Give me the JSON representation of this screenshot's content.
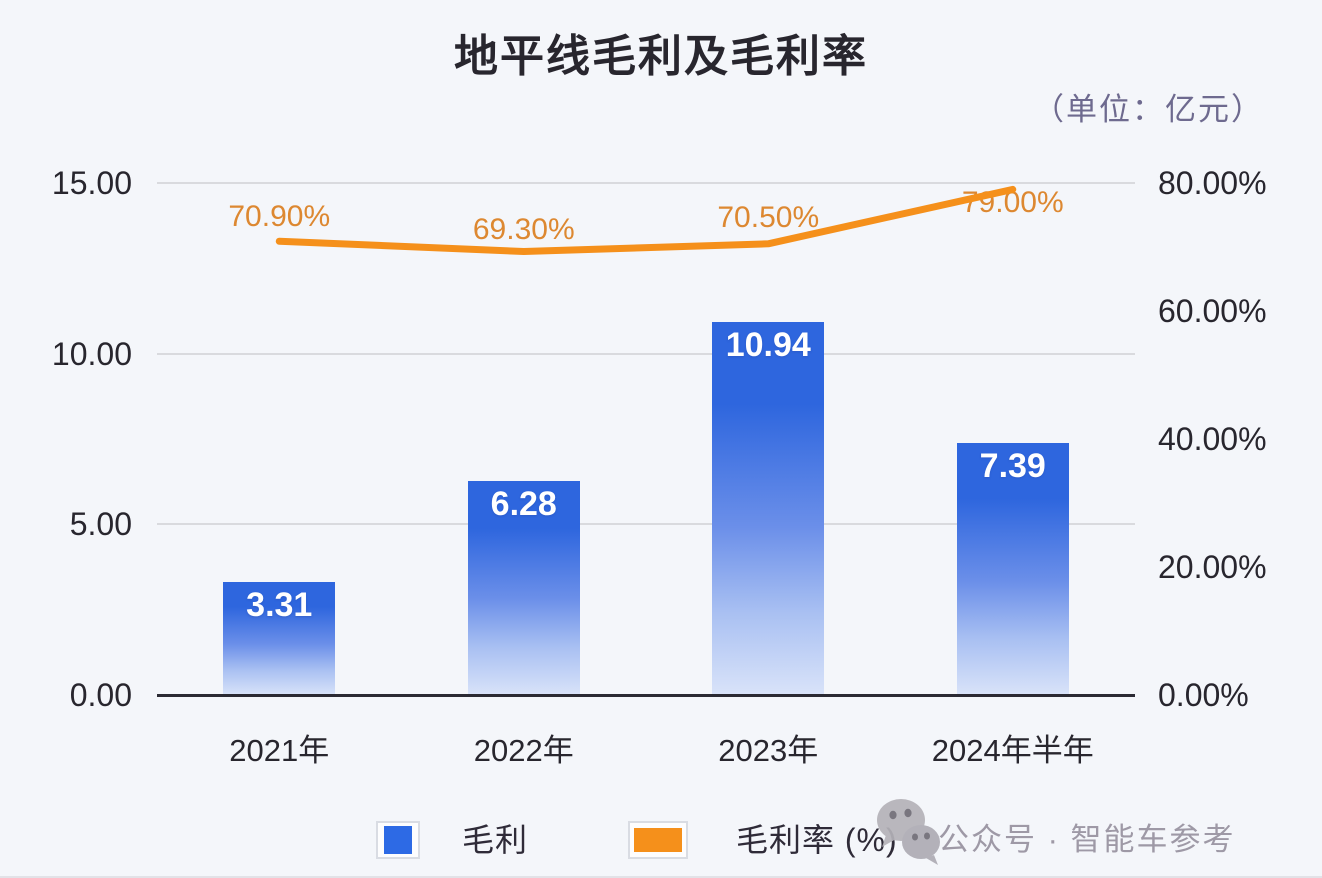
{
  "title": "地平线毛利及毛利率",
  "unit_label": "（单位：亿元）",
  "chart_data": {
    "type": "combo",
    "subtype": "bar+line",
    "categories": [
      "2021年",
      "2022年",
      "2023年",
      "2024年半年"
    ],
    "series": [
      {
        "name": "毛利",
        "type": "bar",
        "axis": "left",
        "values": [
          3.31,
          6.28,
          10.94,
          7.39
        ],
        "data_labels": [
          "3.31",
          "6.28",
          "10.94",
          "7.39"
        ]
      },
      {
        "name": "毛利率 (%)",
        "type": "line",
        "axis": "right",
        "values": [
          70.9,
          69.3,
          70.5,
          79.0
        ],
        "data_labels": [
          "70.90%",
          "69.30%",
          "70.50%",
          "79.00%"
        ]
      }
    ],
    "left_axis": {
      "min": 0,
      "max": 15,
      "ticks": [
        {
          "label": "15.00",
          "value": 15
        },
        {
          "label": "10.00",
          "value": 10
        },
        {
          "label": "5.00",
          "value": 5
        },
        {
          "label": "0.00",
          "value": 0
        }
      ]
    },
    "right_axis": {
      "min": 0,
      "max": 80,
      "ticks": [
        {
          "label": "80.00%",
          "value": 80
        },
        {
          "label": "60.00%",
          "value": 60
        },
        {
          "label": "40.00%",
          "value": 40
        },
        {
          "label": "20.00%",
          "value": 20
        },
        {
          "label": "0.00%",
          "value": 0
        }
      ]
    },
    "grid": "horizontal-major-only",
    "legend_position": "bottom"
  },
  "legend": {
    "items": [
      {
        "label": "毛利",
        "color": "#2d6ae5",
        "swatch": "square"
      },
      {
        "label": "毛利率 (%)",
        "color": "#f5901b",
        "swatch": "rect"
      }
    ]
  },
  "watermark": {
    "icon": "wechat-icon",
    "text": "公众号 · 智能车参考"
  },
  "colors": {
    "background": "#f4f6fa",
    "bar_top": "#2e66de",
    "bar_bottom": "#d9e3f9",
    "line": "#f5901b",
    "line_label": "#dd8831",
    "title": "#28262e",
    "axis_text": "#28262e",
    "unit_text": "#6e6a8f",
    "gridline": "#d9dade",
    "axis_line": "#2b2a33",
    "bar_value_text": "#ffffff",
    "watermark": "#9e99a6"
  }
}
